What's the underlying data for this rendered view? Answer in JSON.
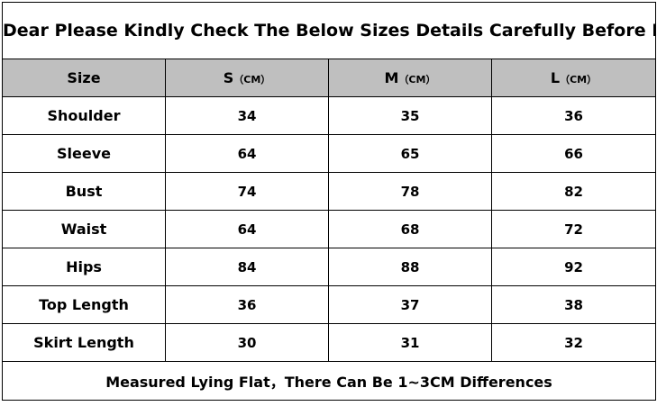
{
  "title": "Dear Please Kindly Check The Below Sizes Details Carefully Before Bid",
  "header": {
    "size_label": "Size",
    "columns": [
      {
        "name": "S",
        "unit": "（CM）"
      },
      {
        "name": "M",
        "unit": "（CM）"
      },
      {
        "name": "L",
        "unit": "（CM）"
      }
    ]
  },
  "rows": [
    {
      "label": "Shoulder",
      "values": [
        "34",
        "35",
        "36"
      ]
    },
    {
      "label": "Sleeve",
      "values": [
        "64",
        "65",
        "66"
      ]
    },
    {
      "label": "Bust",
      "values": [
        "74",
        "78",
        "82"
      ]
    },
    {
      "label": "Waist",
      "values": [
        "64",
        "68",
        "72"
      ]
    },
    {
      "label": "Hips",
      "values": [
        "84",
        "88",
        "92"
      ]
    },
    {
      "label": "Top Length",
      "values": [
        "36",
        "37",
        "38"
      ]
    },
    {
      "label": "Skirt Length",
      "values": [
        "30",
        "31",
        "32"
      ]
    }
  ],
  "footer": "Measured Lying Flat，There Can Be 1~3CM Differences"
}
